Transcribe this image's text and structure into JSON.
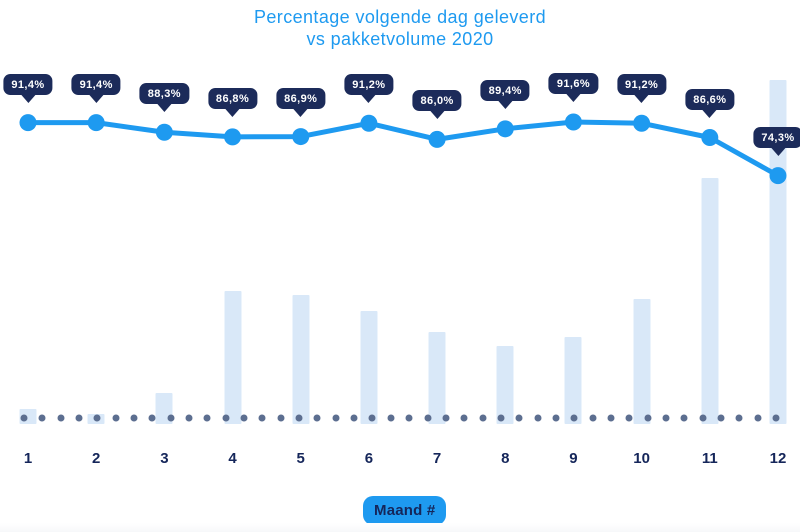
{
  "title": {
    "line1": "Percentage volgende dag geleverd",
    "line2": "vs pakketvolume 2020"
  },
  "chart_data": {
    "type": "combo",
    "categories": [
      "1",
      "2",
      "3",
      "4",
      "5",
      "6",
      "7",
      "8",
      "9",
      "10",
      "11",
      "12"
    ],
    "xlabel": "Maand #",
    "legend_position": "none",
    "grid": false,
    "y_axis_visible": false,
    "baseline_dotted_line": true,
    "series": [
      {
        "name": "Percentage volgende dag geleverd",
        "type": "line",
        "values": [
          91.4,
          91.4,
          88.3,
          86.8,
          86.9,
          91.2,
          86.0,
          89.4,
          91.6,
          91.2,
          86.6,
          74.3
        ],
        "labels": [
          "91,4%",
          "91,4%",
          "88,3%",
          "86,8%",
          "86,9%",
          "91,2%",
          "86,0%",
          "89,4%",
          "91,6%",
          "91,2%",
          "86,6%",
          "74,3%"
        ],
        "ylim": [
          70,
          95
        ],
        "unit": "%"
      },
      {
        "name": "Pakketvolume 2020",
        "type": "bar",
        "values": [
          4.4,
          2.9,
          9.0,
          38.7,
          37.5,
          32.8,
          26.7,
          22.7,
          25.3,
          36.3,
          71.5,
          100
        ],
        "unit": "relative index (month 12 = 100, estimated from bar heights; no value labels shown)"
      }
    ]
  },
  "colors": {
    "accent_blue": "#1e9af0",
    "tooltip_navy": "#1c2b5a",
    "label_navy": "#15265a",
    "bar_fill": "#d9e8f8",
    "dot_slate": "#5c6e90"
  }
}
